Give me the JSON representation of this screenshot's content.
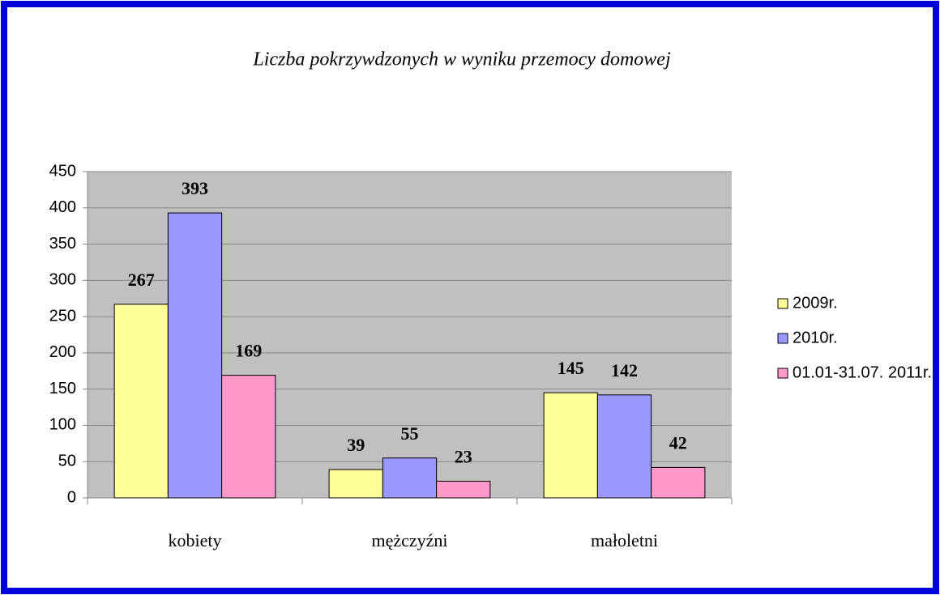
{
  "chart_data": {
    "type": "bar",
    "title": "Liczba pokrzywdzonych w wyniku przemocy domowej",
    "categories": [
      "kobiety",
      "mężczyźni",
      "małoletni"
    ],
    "series": [
      {
        "name": "2009r.",
        "color": "#ffff99",
        "values": [
          267,
          39,
          145
        ]
      },
      {
        "name": "2010r.",
        "color": "#9999ff",
        "values": [
          393,
          55,
          142
        ]
      },
      {
        "name": "01.01-31.07. 2011r.",
        "color": "#ff99cc",
        "values": [
          169,
          23,
          42
        ]
      }
    ],
    "ylim": [
      0,
      450
    ],
    "yticks": [
      0,
      50,
      100,
      150,
      200,
      250,
      300,
      350,
      400,
      450
    ],
    "grid": true,
    "legend": "right"
  }
}
